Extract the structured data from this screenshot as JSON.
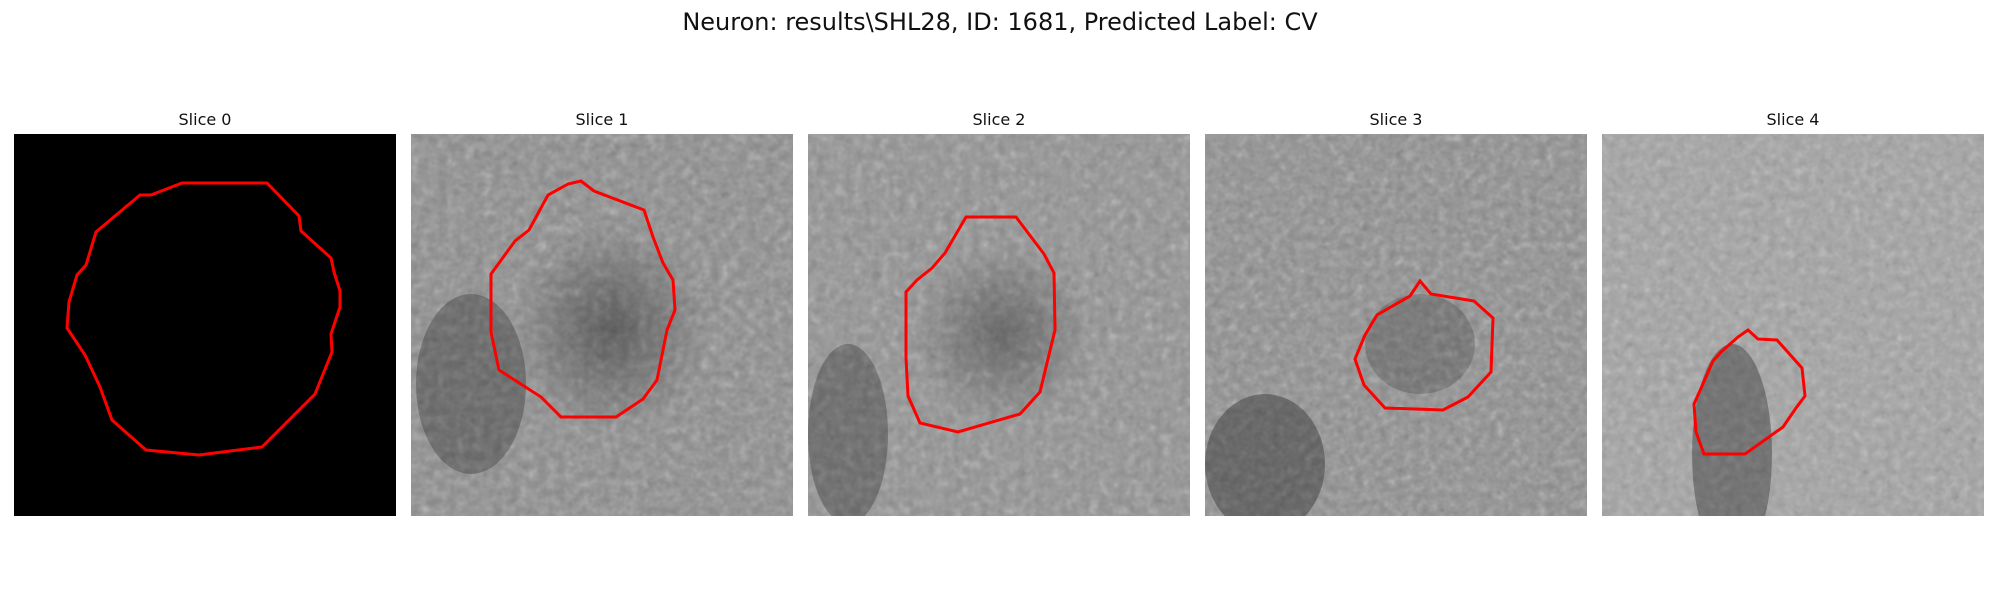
{
  "figure": {
    "title": "Neuron: results\\SHL28, ID: 1681, Predicted Label: CV"
  },
  "panels": [
    {
      "title": "Slice 0"
    },
    {
      "title": "Slice 1"
    },
    {
      "title": "Slice 2"
    },
    {
      "title": "Slice 3"
    },
    {
      "title": "Slice 4"
    }
  ],
  "colors": {
    "contour": "#ff0000",
    "background": "#000000"
  }
}
